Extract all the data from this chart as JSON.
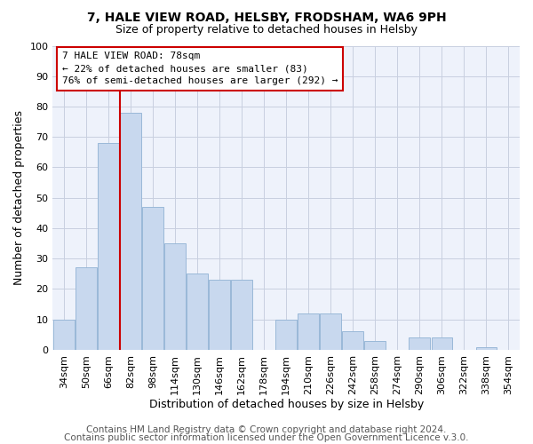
{
  "title1": "7, HALE VIEW ROAD, HELSBY, FRODSHAM, WA6 9PH",
  "title2": "Size of property relative to detached houses in Helsby",
  "xlabel": "Distribution of detached houses by size in Helsby",
  "ylabel": "Number of detached properties",
  "bar_color": "#c8d8ee",
  "bar_edge_color": "#9ab8d8",
  "plot_bg_color": "#eef2fb",
  "categories": [
    "34sqm",
    "50sqm",
    "66sqm",
    "82sqm",
    "98sqm",
    "114sqm",
    "130sqm",
    "146sqm",
    "162sqm",
    "178sqm",
    "194sqm",
    "210sqm",
    "226sqm",
    "242sqm",
    "258sqm",
    "274sqm",
    "290sqm",
    "306sqm",
    "322sqm",
    "338sqm",
    "354sqm"
  ],
  "values": [
    10,
    27,
    68,
    78,
    47,
    35,
    25,
    23,
    23,
    0,
    10,
    12,
    12,
    6,
    3,
    0,
    4,
    4,
    0,
    1,
    0
  ],
  "vline_color": "#cc0000",
  "vline_index": 3,
  "ylim": [
    0,
    100
  ],
  "yticks": [
    0,
    10,
    20,
    30,
    40,
    50,
    60,
    70,
    80,
    90,
    100
  ],
  "annotation_line1": "7 HALE VIEW ROAD: 78sqm",
  "annotation_line2": "← 22% of detached houses are smaller (83)",
  "annotation_line3": "76% of semi-detached houses are larger (292) →",
  "footer1": "Contains HM Land Registry data © Crown copyright and database right 2024.",
  "footer2": "Contains public sector information licensed under the Open Government Licence v.3.0.",
  "bg_color": "#ffffff",
  "grid_color": "#c8cfe0",
  "title1_fontsize": 10,
  "title2_fontsize": 9,
  "axis_label_fontsize": 9,
  "tick_fontsize": 8,
  "annotation_fontsize": 8,
  "footer_fontsize": 7.5
}
